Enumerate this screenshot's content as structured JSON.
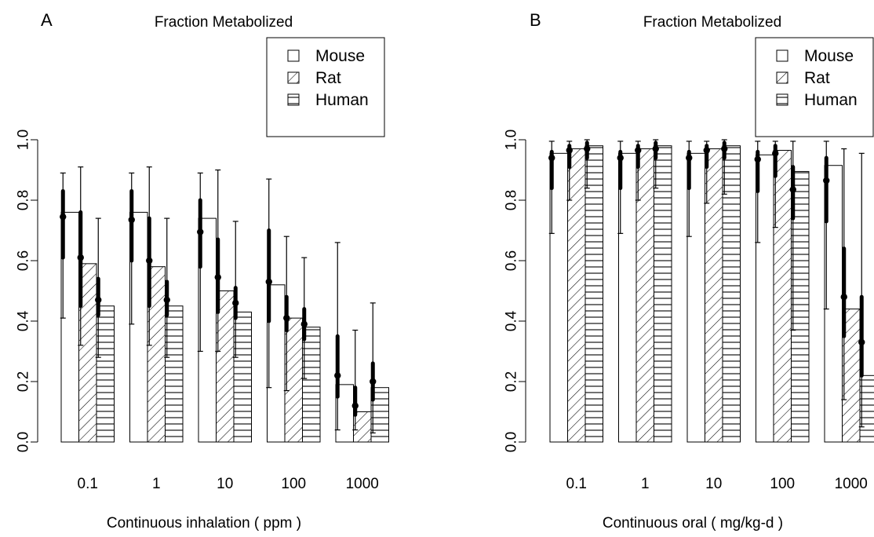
{
  "chart_data": [
    {
      "type": "bar",
      "panel_label": "A",
      "title": "Fraction Metabolized",
      "xlabel": "Continuous inhalation ( ppm )",
      "ylabel": "",
      "categories": [
        "0.1",
        "1",
        "10",
        "100",
        "1000"
      ],
      "ylim": [
        0,
        1
      ],
      "yticks": [
        "0.0",
        "0.2",
        "0.4",
        "0.6",
        "0.8",
        "1.0"
      ],
      "legend": {
        "position": "top-right",
        "entries": [
          "Mouse",
          "Rat",
          "Human"
        ]
      },
      "series": [
        {
          "name": "Mouse",
          "fill": "none",
          "values": [
            0.76,
            0.76,
            0.74,
            0.52,
            0.19
          ],
          "median": [
            0.745,
            0.735,
            0.695,
            0.53,
            0.22
          ],
          "ci_inner": [
            [
              0.61,
              0.83
            ],
            [
              0.6,
              0.83
            ],
            [
              0.58,
              0.8
            ],
            [
              0.4,
              0.7
            ],
            [
              0.15,
              0.35
            ]
          ],
          "ci_outer": [
            [
              0.41,
              0.89
            ],
            [
              0.39,
              0.89
            ],
            [
              0.3,
              0.89
            ],
            [
              0.18,
              0.87
            ],
            [
              0.04,
              0.66
            ]
          ]
        },
        {
          "name": "Rat",
          "fill": "diagonal",
          "values": [
            0.59,
            0.58,
            0.5,
            0.41,
            0.1
          ],
          "median": [
            0.61,
            0.6,
            0.545,
            0.41,
            0.12
          ],
          "ci_inner": [
            [
              0.45,
              0.76
            ],
            [
              0.45,
              0.74
            ],
            [
              0.43,
              0.67
            ],
            [
              0.37,
              0.48
            ],
            [
              0.09,
              0.18
            ]
          ],
          "ci_outer": [
            [
              0.32,
              0.91
            ],
            [
              0.32,
              0.91
            ],
            [
              0.3,
              0.9
            ],
            [
              0.17,
              0.68
            ],
            [
              0.04,
              0.37
            ]
          ]
        },
        {
          "name": "Human",
          "fill": "horizontal",
          "values": [
            0.45,
            0.45,
            0.43,
            0.38,
            0.18
          ],
          "median": [
            0.47,
            0.47,
            0.46,
            0.39,
            0.2
          ],
          "ci_inner": [
            [
              0.42,
              0.54
            ],
            [
              0.42,
              0.53
            ],
            [
              0.41,
              0.51
            ],
            [
              0.34,
              0.44
            ],
            [
              0.14,
              0.26
            ]
          ],
          "ci_outer": [
            [
              0.28,
              0.74
            ],
            [
              0.28,
              0.74
            ],
            [
              0.28,
              0.73
            ],
            [
              0.21,
              0.61
            ],
            [
              0.03,
              0.46
            ]
          ]
        }
      ]
    },
    {
      "type": "bar",
      "panel_label": "B",
      "title": "Fraction Metabolized",
      "xlabel": "Continuous oral ( mg/kg-d )",
      "ylabel": "",
      "categories": [
        "0.1",
        "1",
        "10",
        "100",
        "1000"
      ],
      "ylim": [
        0,
        1
      ],
      "yticks": [
        "0.0",
        "0.2",
        "0.4",
        "0.6",
        "0.8",
        "1.0"
      ],
      "legend": {
        "position": "top-right",
        "entries": [
          "Mouse",
          "Rat",
          "Human"
        ]
      },
      "series": [
        {
          "name": "Mouse",
          "fill": "none",
          "values": [
            0.955,
            0.955,
            0.955,
            0.95,
            0.915
          ],
          "median": [
            0.94,
            0.94,
            0.94,
            0.935,
            0.865
          ],
          "ci_inner": [
            [
              0.84,
              0.96
            ],
            [
              0.84,
              0.96
            ],
            [
              0.84,
              0.96
            ],
            [
              0.83,
              0.96
            ],
            [
              0.73,
              0.94
            ]
          ],
          "ci_outer": [
            [
              0.69,
              0.995
            ],
            [
              0.69,
              0.995
            ],
            [
              0.68,
              0.995
            ],
            [
              0.66,
              0.995
            ],
            [
              0.44,
              0.995
            ]
          ]
        },
        {
          "name": "Rat",
          "fill": "diagonal",
          "values": [
            0.97,
            0.97,
            0.97,
            0.965,
            0.44
          ],
          "median": [
            0.965,
            0.965,
            0.965,
            0.955,
            0.48
          ],
          "ci_inner": [
            [
              0.91,
              0.98
            ],
            [
              0.91,
              0.98
            ],
            [
              0.91,
              0.98
            ],
            [
              0.88,
              0.98
            ],
            [
              0.35,
              0.64
            ]
          ],
          "ci_outer": [
            [
              0.8,
              0.995
            ],
            [
              0.8,
              0.995
            ],
            [
              0.79,
              0.995
            ],
            [
              0.71,
              0.995
            ],
            [
              0.14,
              0.97
            ]
          ]
        },
        {
          "name": "Human",
          "fill": "horizontal",
          "values": [
            0.98,
            0.98,
            0.98,
            0.895,
            0.22
          ],
          "median": [
            0.97,
            0.97,
            0.97,
            0.835,
            0.33
          ],
          "ci_inner": [
            [
              0.94,
              0.99
            ],
            [
              0.94,
              0.99
            ],
            [
              0.94,
              0.99
            ],
            [
              0.74,
              0.91
            ],
            [
              0.22,
              0.48
            ]
          ],
          "ci_outer": [
            [
              0.84,
              1.0
            ],
            [
              0.84,
              1.0
            ],
            [
              0.82,
              1.0
            ],
            [
              0.37,
              0.995
            ],
            [
              0.05,
              0.955
            ]
          ]
        }
      ]
    }
  ]
}
